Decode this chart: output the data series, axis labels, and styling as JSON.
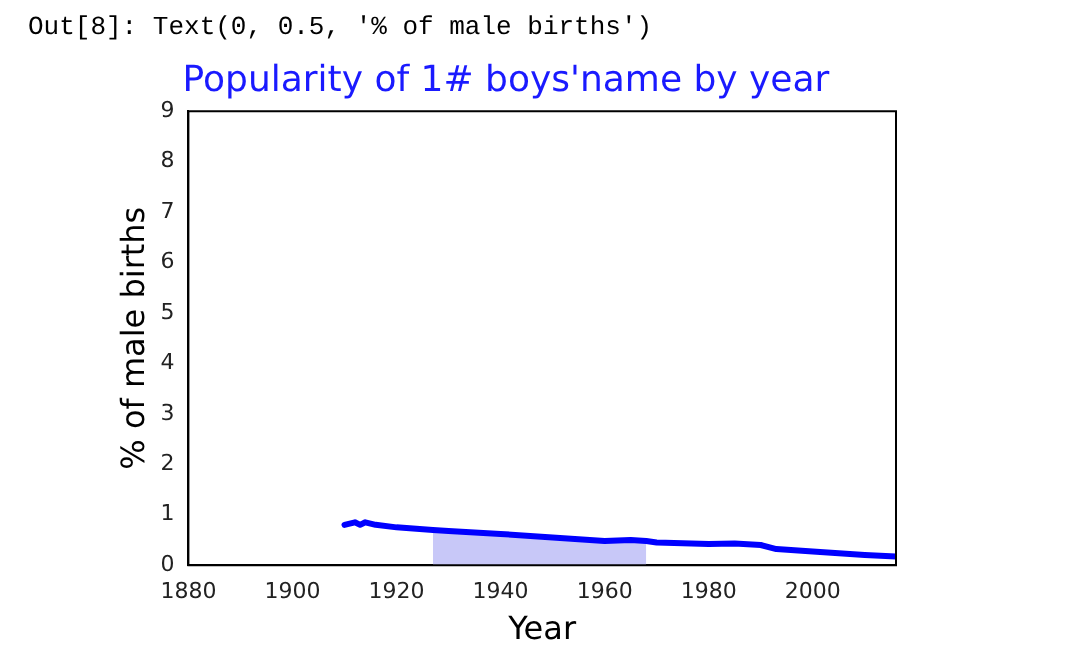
{
  "chart_data": {
    "type": "line",
    "title": "Popularity of 1# boys'name by year",
    "xlabel": "Year",
    "ylabel": "% of male births",
    "annotations": [
      "Out[8]: Text(0, 0.5, '% of male births')"
    ],
    "series": [
      {
        "type": "area",
        "color": "#c8c8f8",
        "x": [
          1927,
          1930,
          1940,
          1950,
          1960,
          1965,
          1968
        ],
        "values": [
          0.7,
          0.68,
          0.62,
          0.55,
          0.48,
          0.5,
          0.48
        ]
      },
      {
        "color": "#0000ff",
        "x": [
          1910,
          1912,
          1913,
          1914,
          1916,
          1920,
          1927,
          1930,
          1940,
          1950,
          1960,
          1965,
          1968,
          1970,
          1980,
          1985,
          1990,
          1993,
          2000,
          2010,
          2016
        ],
        "values": [
          0.8,
          0.85,
          0.8,
          0.85,
          0.8,
          0.75,
          0.7,
          0.68,
          0.62,
          0.55,
          0.48,
          0.5,
          0.48,
          0.45,
          0.42,
          0.43,
          0.4,
          0.32,
          0.27,
          0.2,
          0.17
        ]
      }
    ],
    "xlim": [
      1880,
      2016
    ],
    "xticks": [
      1880,
      1900,
      1920,
      1940,
      1960,
      1980,
      2000
    ],
    "ylim": [
      0,
      9
    ],
    "yticks": [
      0,
      1,
      2,
      3,
      4,
      5,
      6,
      7,
      8,
      9
    ],
    "grid": false,
    "legend": false,
    "marker": "none",
    "line_style": "solid"
  }
}
